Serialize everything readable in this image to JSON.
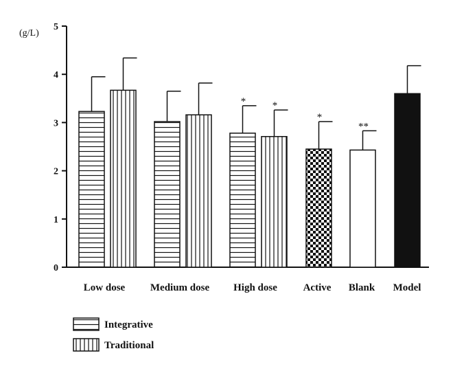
{
  "chart_data": {
    "type": "bar",
    "ylabel": "(g/L)",
    "ylim": [
      0,
      5
    ],
    "yticks": [
      0,
      1,
      2,
      3,
      4,
      5
    ],
    "categories": [
      "Low dose",
      "Medium dose",
      "High dose",
      "Active",
      "Blank",
      "Model"
    ],
    "legend": [
      {
        "name": "Integrative",
        "pattern": "horizontal"
      },
      {
        "name": "Traditional",
        "pattern": "vertical"
      }
    ],
    "bars": [
      {
        "category": "Low dose",
        "series": "Integrative",
        "pattern": "horizontal",
        "value": 3.23,
        "error": 0.72,
        "sig": ""
      },
      {
        "category": "Low dose",
        "series": "Traditional",
        "pattern": "vertical",
        "value": 3.67,
        "error": 0.67,
        "sig": ""
      },
      {
        "category": "Medium dose",
        "series": "Integrative",
        "pattern": "horizontal",
        "value": 3.02,
        "error": 0.63,
        "sig": ""
      },
      {
        "category": "Medium dose",
        "series": "Traditional",
        "pattern": "vertical",
        "value": 3.16,
        "error": 0.66,
        "sig": ""
      },
      {
        "category": "High dose",
        "series": "Integrative",
        "pattern": "horizontal",
        "value": 2.78,
        "error": 0.57,
        "sig": "*"
      },
      {
        "category": "High dose",
        "series": "Traditional",
        "pattern": "vertical",
        "value": 2.71,
        "error": 0.55,
        "sig": "*"
      },
      {
        "category": "Active",
        "series": "",
        "pattern": "checker",
        "value": 2.45,
        "error": 0.57,
        "sig": "*"
      },
      {
        "category": "Blank",
        "series": "",
        "pattern": "white",
        "value": 2.43,
        "error": 0.4,
        "sig": "**"
      },
      {
        "category": "Model",
        "series": "",
        "pattern": "black",
        "value": 3.6,
        "error": 0.58,
        "sig": ""
      }
    ],
    "grid": false,
    "legend_position": "bottom-left"
  }
}
